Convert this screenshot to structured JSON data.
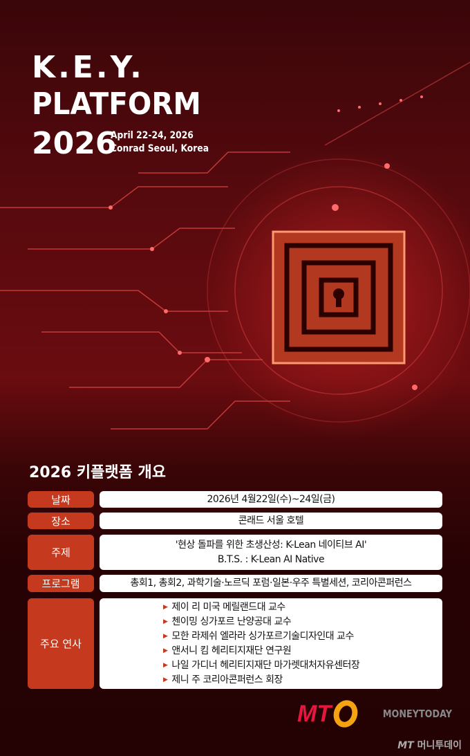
{
  "hero": {
    "line1": "K.E.Y.",
    "line2": "PLATFORM",
    "year": "2026",
    "date": "April 22-24, 2026",
    "venue": "Conrad Seoul, Korea"
  },
  "section_title": "2026 키플랫폼 개요",
  "rows": [
    {
      "label": "날짜",
      "values": [
        "2026년 4월22일(수)~24일(금)"
      ]
    },
    {
      "label": "장소",
      "values": [
        "콘래드 서울 호텔"
      ]
    },
    {
      "label": "주제",
      "values": [
        "'현상 돌파를 위한 초생산성: K-Lean 네이티브 AI'",
        "B.T.S. : K-Lean AI Native"
      ]
    },
    {
      "label": "프로그램",
      "values": [
        "총회1, 총회2, 과학기술·노르딕 포럼·일본·우주 특별세션, 코리아콘퍼런스"
      ]
    },
    {
      "label": "주요 연사",
      "values": [
        "제이 리 미국 메릴랜드대 교수",
        "첸이밍 싱가포르 난양공대 교수",
        "모한 라제쉬 엘라라 싱가포르기술디자인대 교수",
        "앤서니 킴 헤리티지재단 연구원",
        "나일 가디너 헤리티지재단 마가렛대처자유센터장",
        "제니 주 코리아콘퍼런스 회장"
      ]
    }
  ],
  "logo": {
    "mark": "MT",
    "name": "MONEYTODAY",
    "watermark_mark": "MT",
    "watermark": "머니투데이"
  },
  "colors": {
    "label_bg": "#c53a1f",
    "accent": "#e5173f",
    "ring": "#f5a310"
  }
}
